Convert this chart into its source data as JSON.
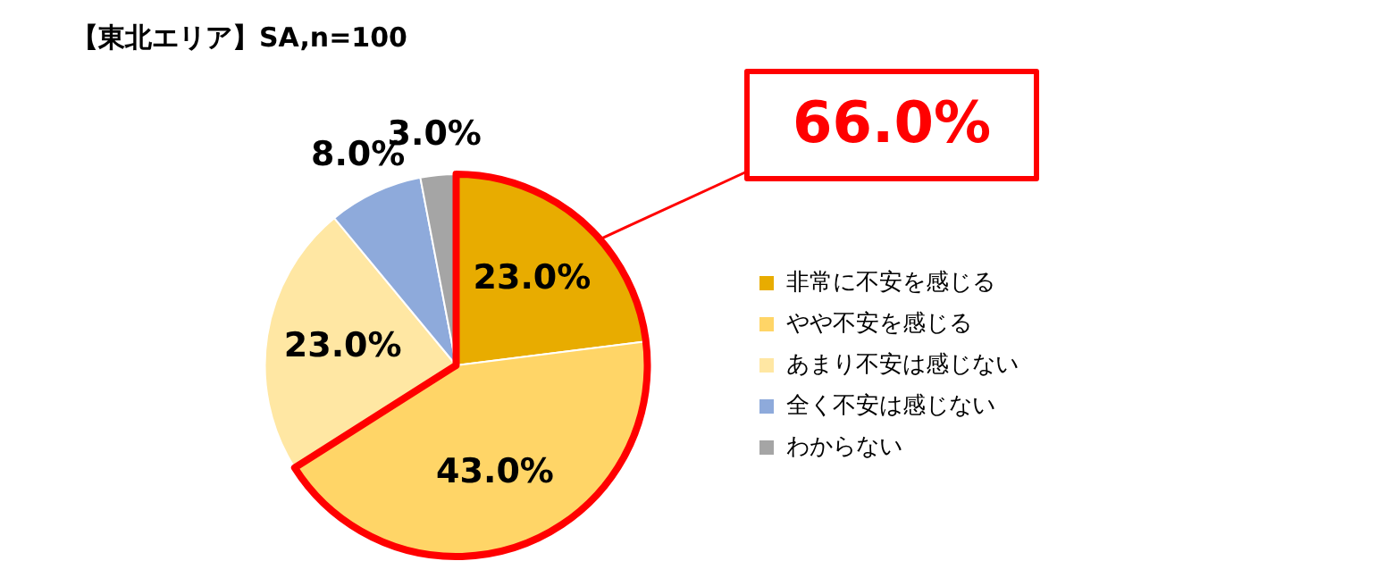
{
  "chart_data": {
    "type": "pie",
    "title": "【東北エリア】SA,n=100",
    "categories": [
      "非常に不安を感じる",
      "やや不安を感じる",
      "あまり不安は感じない",
      "全く不安は感じない",
      "わからない"
    ],
    "values": [
      23,
      43,
      23,
      8,
      3
    ],
    "value_labels": [
      "23.0%",
      "43.0%",
      "23.0%",
      "8.0%",
      "3.0%"
    ],
    "colors": [
      "#e8ac00",
      "#ffd567",
      "#ffe7a3",
      "#8eaadb",
      "#a5a5a5"
    ],
    "annotations": [
      "66.0%"
    ],
    "legend": "right"
  }
}
